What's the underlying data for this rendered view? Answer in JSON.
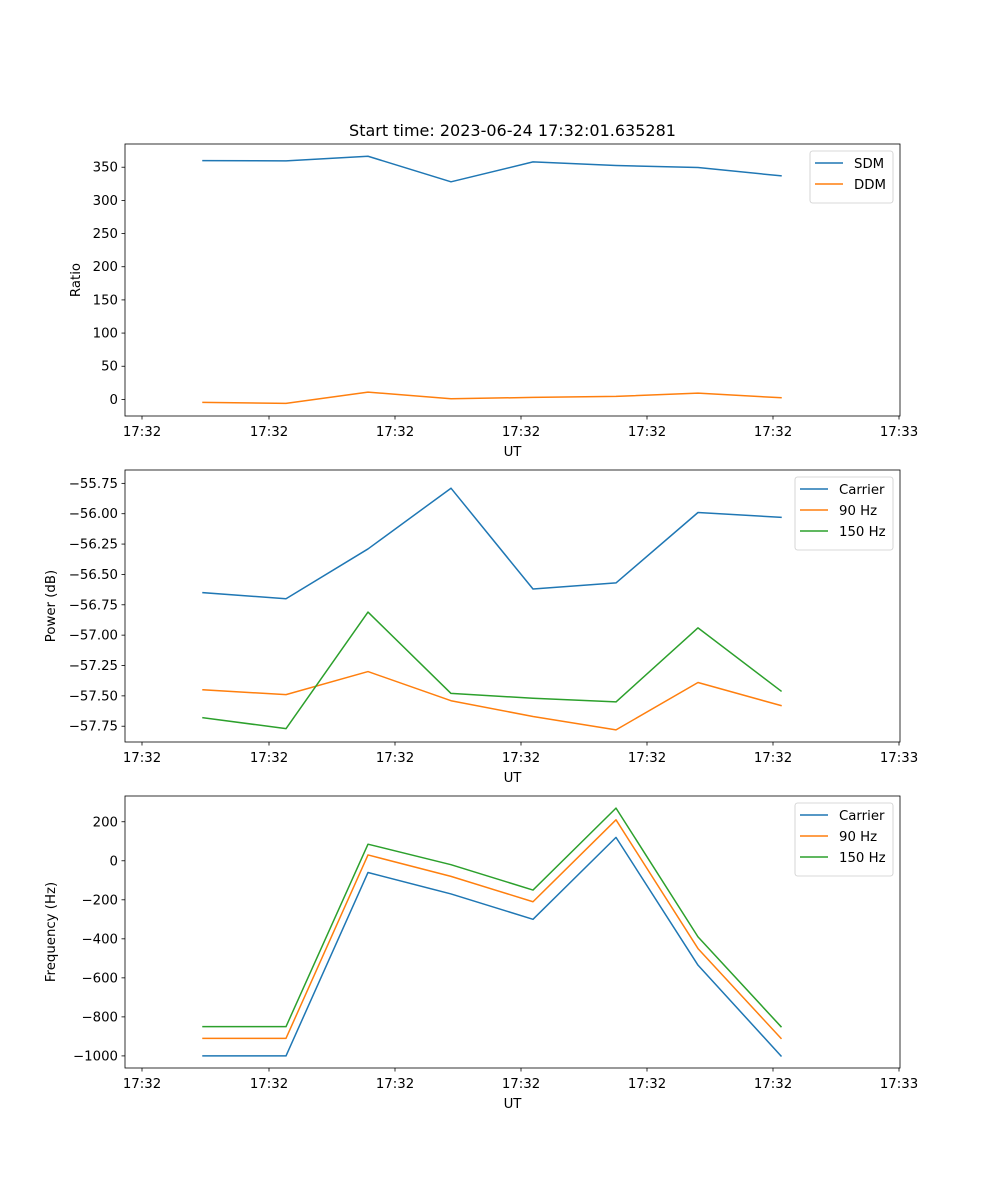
{
  "chart_data": [
    {
      "type": "line",
      "title": "Start time: 2023-06-24 17:32:01.635281",
      "xlabel": "UT",
      "ylabel": "Ratio",
      "x_ticks": [
        "17:32",
        "17:32",
        "17:32",
        "17:32",
        "17:32",
        "17:32",
        "17:32",
        "17:33"
      ],
      "y_ticks": [
        0,
        50,
        100,
        150,
        200,
        250,
        300,
        350
      ],
      "y_tick_labels": [
        "0",
        "50",
        "100",
        "150",
        "200",
        "250",
        "300",
        "350"
      ],
      "ylim": [
        -25,
        385
      ],
      "legend_position": "top-right",
      "series": [
        {
          "name": "SDM",
          "color": "#1f77b4",
          "values": [
            360,
            359.5,
            366.5,
            328,
            358,
            352.5,
            349.5,
            337
          ]
        },
        {
          "name": "DDM",
          "color": "#ff7f0e",
          "values": [
            -4.5,
            -6,
            11,
            1,
            3,
            4.5,
            9.5,
            2.5
          ]
        }
      ]
    },
    {
      "type": "line",
      "title": "",
      "xlabel": "UT",
      "ylabel": "Power (dB)",
      "x_ticks": [
        "17:32",
        "17:32",
        "17:32",
        "17:32",
        "17:32",
        "17:32",
        "17:32",
        "17:33"
      ],
      "y_ticks": [
        -57.75,
        -57.5,
        -57.25,
        -57.0,
        -56.75,
        -56.5,
        -56.25,
        -56.0,
        -55.75
      ],
      "y_tick_labels": [
        "−57.75",
        "−57.50",
        "−57.25",
        "−57.00",
        "−56.75",
        "−56.50",
        "−56.25",
        "−56.00",
        "−55.75"
      ],
      "ylim": [
        -57.88,
        -55.64
      ],
      "legend_position": "top-right",
      "series": [
        {
          "name": "Carrier",
          "color": "#1f77b4",
          "values": [
            -56.65,
            -56.7,
            -56.29,
            -55.79,
            -56.62,
            -56.57,
            -55.99,
            -56.03
          ]
        },
        {
          "name": "90 Hz",
          "color": "#ff7f0e",
          "values": [
            -57.45,
            -57.49,
            -57.3,
            -57.54,
            -57.67,
            -57.78,
            -57.39,
            -57.58
          ]
        },
        {
          "name": "150 Hz",
          "color": "#2ca02c",
          "values": [
            -57.68,
            -57.77,
            -56.81,
            -57.48,
            -57.52,
            -57.55,
            -56.94,
            -57.46
          ]
        }
      ]
    },
    {
      "type": "line",
      "title": "",
      "xlabel": "UT",
      "ylabel": "Frequency (Hz)",
      "x_ticks": [
        "17:32",
        "17:32",
        "17:32",
        "17:32",
        "17:32",
        "17:32",
        "17:32",
        "17:33"
      ],
      "y_ticks": [
        -1000,
        -800,
        -600,
        -400,
        -200,
        0,
        200
      ],
      "y_tick_labels": [
        "−1000",
        "−800",
        "−600",
        "−400",
        "−200",
        "0",
        "200"
      ],
      "ylim": [
        -1062,
        332
      ],
      "legend_position": "top-right",
      "series": [
        {
          "name": "Carrier",
          "color": "#1f77b4",
          "values": [
            -1000,
            -1000,
            -60,
            -170,
            -300,
            120,
            -535,
            -1000
          ]
        },
        {
          "name": "90 Hz",
          "color": "#ff7f0e",
          "values": [
            -910,
            -910,
            30,
            -80,
            -210,
            210,
            -450,
            -910
          ]
        },
        {
          "name": "150 Hz",
          "color": "#2ca02c",
          "values": [
            -850,
            -850,
            85,
            -20,
            -150,
            270,
            -390,
            -850
          ]
        }
      ]
    }
  ]
}
